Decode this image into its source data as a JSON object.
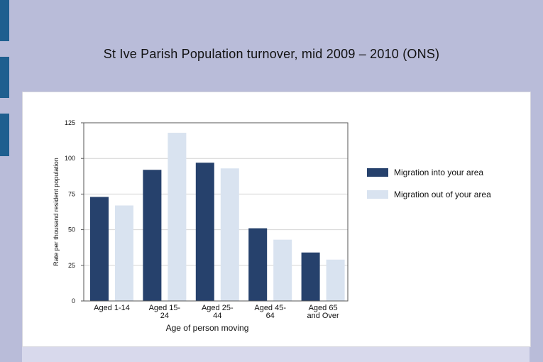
{
  "slide": {
    "title": "St Ive Parish Population turnover, mid 2009 – 2010 (ONS)"
  },
  "colors": {
    "background": "#b9bcd9",
    "accent": "#1f5f8f",
    "series_in": "#26416c",
    "series_out": "#d9e3f0"
  },
  "chart_data": {
    "type": "bar",
    "categories": [
      [
        "Aged 1-14"
      ],
      [
        "Aged 15-",
        "24"
      ],
      [
        "Aged 25-",
        "44"
      ],
      [
        "Aged 45-",
        "64"
      ],
      [
        "Aged 65",
        "and Over"
      ]
    ],
    "series": [
      {
        "name": "Migration into your area",
        "color": "#26416c",
        "values": [
          73,
          92,
          97,
          51,
          34
        ]
      },
      {
        "name": "Migration out of your area",
        "color": "#d9e3f0",
        "values": [
          67,
          118,
          93,
          43,
          29
        ]
      }
    ],
    "xlabel": "Age of person moving",
    "ylabel": "Rate per thousand resident population",
    "ylim": [
      0,
      125
    ],
    "yticks": [
      0,
      25,
      50,
      75,
      100,
      125
    ],
    "grid": true,
    "legend": "right"
  }
}
